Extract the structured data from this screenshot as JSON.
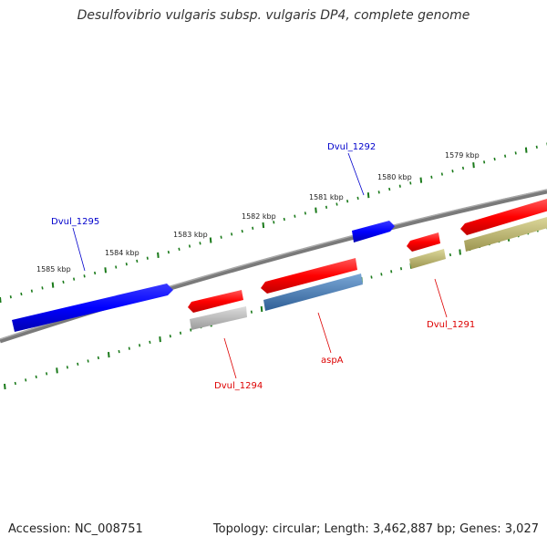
{
  "title": "Desulfovibrio vulgaris subsp. vulgaris DP4, complete genome",
  "accession": "Accession: NC_008751",
  "summary": "Topology: circular; Length: 3,462,887 bp; Genes: 3,027",
  "colors": {
    "forward_cds": "#ff0000",
    "reverse_cds": "#0000ff",
    "backbone": "#808080",
    "ticks": "#1a7a1a",
    "cog_gray": "#bbbbbb",
    "cog_steel": "#4a7fb5",
    "cog_olive": "#bdb76b"
  },
  "scale_ticks": [
    {
      "label": "1579 kbp"
    },
    {
      "label": "1580 kbp"
    },
    {
      "label": "1581 kbp"
    },
    {
      "label": "1582 kbp"
    },
    {
      "label": "1583 kbp"
    },
    {
      "label": "1584 kbp"
    },
    {
      "label": "1585 kbp"
    }
  ],
  "gene_labels": [
    {
      "name": "Dvul_1292",
      "strand": "reverse"
    },
    {
      "name": "Dvul_1295",
      "strand": "reverse"
    },
    {
      "name": "Dvul_1294",
      "strand": "forward"
    },
    {
      "name": "aspA",
      "strand": "forward"
    },
    {
      "name": "Dvul_1291",
      "strand": "forward"
    }
  ]
}
